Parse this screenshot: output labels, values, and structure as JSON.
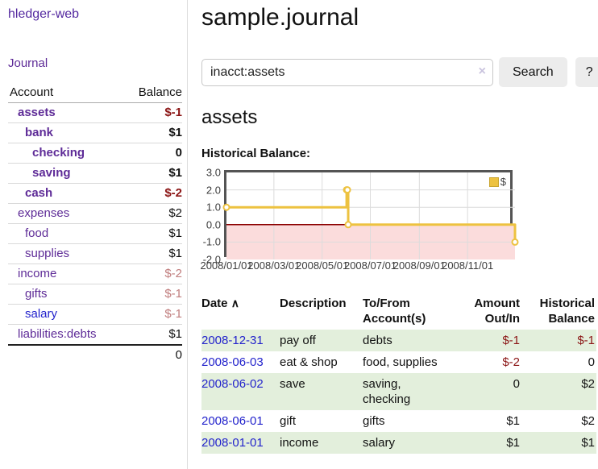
{
  "app": {
    "brand": "hledger-web"
  },
  "sidebar": {
    "journal_link": "Journal",
    "table": {
      "account_header": "Account",
      "balance_header": "Balance",
      "rows": [
        {
          "name": "assets",
          "balance": "$-1"
        },
        {
          "name": "bank",
          "balance": "$1"
        },
        {
          "name": "checking",
          "balance": "0"
        },
        {
          "name": "saving",
          "balance": "$1"
        },
        {
          "name": "cash",
          "balance": "$-2"
        },
        {
          "name": "expenses",
          "balance": "$2"
        },
        {
          "name": "food",
          "balance": "$1"
        },
        {
          "name": "supplies",
          "balance": "$1"
        },
        {
          "name": "income",
          "balance": "$-2"
        },
        {
          "name": "gifts",
          "balance": "$-1"
        },
        {
          "name": "salary",
          "balance": "$-1"
        },
        {
          "name": "liabilities:debts",
          "balance": "$1"
        }
      ],
      "total": "0"
    }
  },
  "main": {
    "title": "sample.journal",
    "search": {
      "value": "inacct:assets",
      "clear_icon": "×",
      "button": "Search",
      "help_button": "?"
    },
    "account_heading": "assets",
    "chart_label": "Historical Balance:",
    "register": {
      "columns": {
        "date": "Date",
        "sort_icon": "∧",
        "description": "Description",
        "accounts": "To/From Account(s)",
        "amount": "Amount Out/In",
        "balance": "Historical Balance"
      },
      "rows": [
        {
          "date": "2008-12-31",
          "description": "pay off",
          "accounts": "debts",
          "amount": "$-1",
          "balance": "$-1"
        },
        {
          "date": "2008-06-03",
          "description": "eat & shop",
          "accounts": "food, supplies",
          "amount": "$-2",
          "balance": "0"
        },
        {
          "date": "2008-06-02",
          "description": "save",
          "accounts": "saving, checking",
          "amount": "0",
          "balance": "$2"
        },
        {
          "date": "2008-06-01",
          "description": "gift",
          "accounts": "gifts",
          "amount": "$1",
          "balance": "$2"
        },
        {
          "date": "2008-01-01",
          "description": "income",
          "accounts": "salary",
          "amount": "$1",
          "balance": "$1"
        }
      ]
    }
  },
  "chart_data": {
    "type": "line",
    "title": "Historical Balance:",
    "series": [
      {
        "name": "$",
        "points": [
          [
            "2008-01-01",
            1
          ],
          [
            "2008-06-01",
            2
          ],
          [
            "2008-06-02",
            2
          ],
          [
            "2008-06-03",
            0
          ],
          [
            "2008-12-31",
            -1
          ]
        ]
      }
    ],
    "steps": true,
    "x_range": [
      "2008-01-01",
      "2008-12-31"
    ],
    "ylim": [
      -2,
      3
    ],
    "yticks": [
      "3.0",
      "2.0",
      "1.0",
      "0.0",
      "-1.0",
      "-2.0"
    ],
    "xticks": [
      {
        "date": "2008-01-01",
        "label": "2008/01/01"
      },
      {
        "date": "2008-03-01",
        "label": "2008/03/01"
      },
      {
        "date": "2008-05-01",
        "label": "2008/05/01"
      },
      {
        "date": "2008-07-01",
        "label": "2008/07/01"
      },
      {
        "date": "2008-09-01",
        "label": "2008/09/01"
      },
      {
        "date": "2008-11-01",
        "label": "2008/11/01"
      }
    ],
    "legend_position": "top-right",
    "grid": true,
    "colors": {
      "series": "#edc240",
      "marker_fill": "#ffffff",
      "negative_region": "#fbdcdc",
      "zero_line": "#8b0000",
      "grid": "#dcdcdc",
      "border": "#545454"
    }
  }
}
